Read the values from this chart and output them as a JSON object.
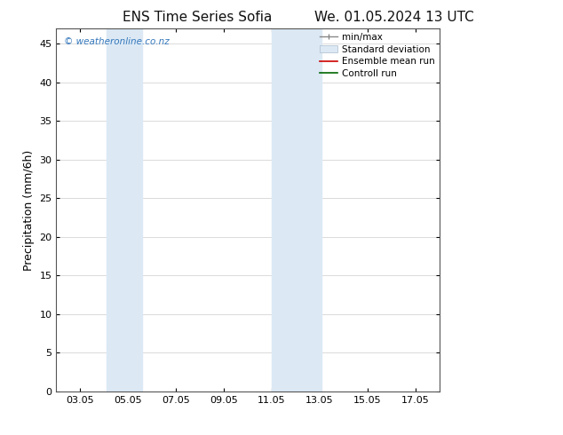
{
  "title_left": "ENS Time Series Sofia",
  "title_right": "We. 01.05.2024 13 UTC",
  "ylabel": "Precipitation (mm/6h)",
  "xlim": [
    2.0,
    18.0
  ],
  "ylim": [
    0,
    47
  ],
  "yticks": [
    0,
    5,
    10,
    15,
    20,
    25,
    30,
    35,
    40,
    45
  ],
  "xtick_labels": [
    "03.05",
    "05.05",
    "07.05",
    "09.05",
    "11.05",
    "13.05",
    "15.05",
    "17.05"
  ],
  "xtick_positions": [
    3,
    5,
    7,
    9,
    11,
    13,
    15,
    17
  ],
  "bg_color": "#ffffff",
  "plot_bg_color": "#ffffff",
  "shaded_regions": [
    {
      "xmin": 4.1,
      "xmax": 4.85,
      "color": "#dce9f5"
    },
    {
      "xmin": 4.85,
      "xmax": 5.6,
      "color": "#dce9f5"
    },
    {
      "xmin": 11.0,
      "xmax": 11.75,
      "color": "#dce9f5"
    },
    {
      "xmin": 11.75,
      "xmax": 13.1,
      "color": "#dce9f5"
    }
  ],
  "watermark_text": "© weatheronline.co.nz",
  "watermark_color": "#3377bb",
  "legend_fontsize": 7.5,
  "title_fontsize": 11,
  "ylabel_fontsize": 9,
  "tick_fontsize": 8
}
